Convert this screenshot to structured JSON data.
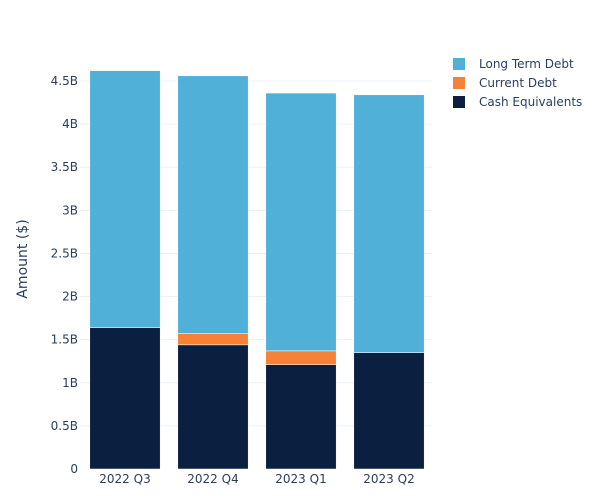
{
  "chart_data": {
    "type": "bar",
    "stacked": true,
    "title": "",
    "xlabel": "",
    "ylabel": "Amount ($)",
    "categories": [
      "2022 Q3",
      "2022 Q4",
      "2023 Q1",
      "2023 Q2"
    ],
    "ylim": [
      0,
      4750000000.0
    ],
    "yticks": [
      0,
      500000000.0,
      1000000000.0,
      1500000000.0,
      2000000000.0,
      2500000000.0,
      3000000000.0,
      3500000000.0,
      4000000000.0,
      4500000000.0
    ],
    "ytick_labels": [
      "0",
      "0.5B",
      "1B",
      "1.5B",
      "2B",
      "2.5B",
      "3B",
      "3.5B",
      "4B",
      "4.5B"
    ],
    "grid": true,
    "legend_position": "top-right",
    "series": [
      {
        "name": "Cash Equivalents",
        "color": "#0b1f40",
        "values": [
          1640000000.0,
          1440000000.0,
          1210000000.0,
          1350000000.0
        ]
      },
      {
        "name": "Current Debt",
        "color": "#f78235",
        "values": [
          0,
          130000000.0,
          160000000.0,
          0
        ]
      },
      {
        "name": "Long Term Debt",
        "color": "#51b0d8",
        "values": [
          2980000000.0,
          2990000000.0,
          2990000000.0,
          2990000000.0
        ]
      }
    ],
    "legend_order": [
      "Long Term Debt",
      "Current Debt",
      "Cash Equivalents"
    ]
  }
}
